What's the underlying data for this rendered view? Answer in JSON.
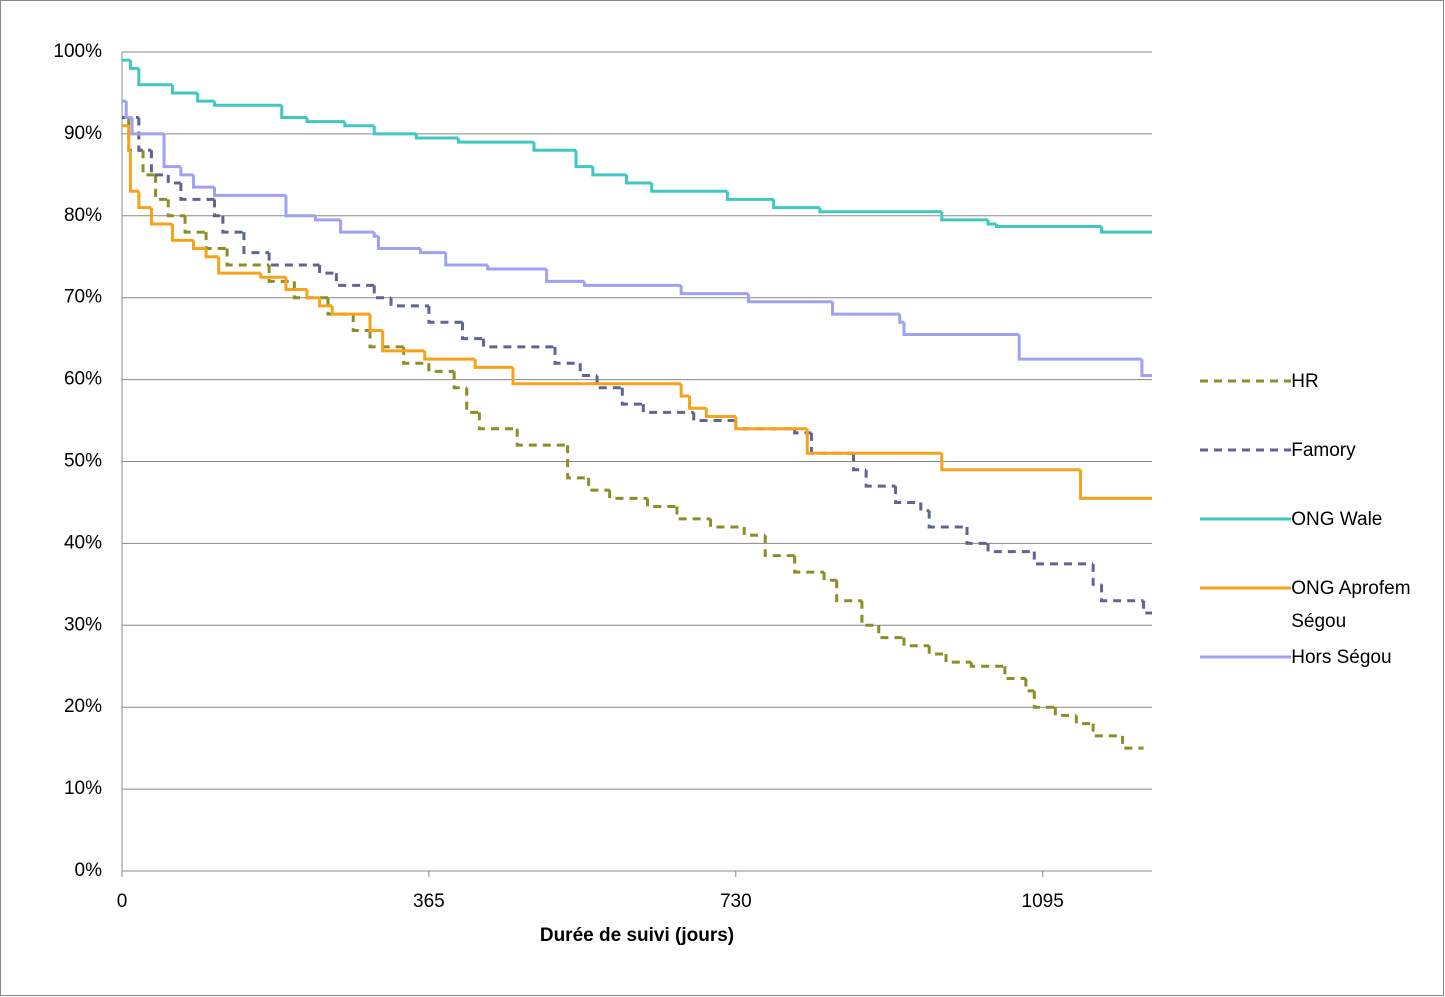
{
  "chart_data": {
    "type": "step-line",
    "xlabel": "Durée de suivi (jours)",
    "xlim": [
      0,
      1225
    ],
    "xticks": [
      0,
      365,
      730,
      1095
    ],
    "ylim": [
      0,
      100
    ],
    "yticks": [
      {
        "value": 0,
        "label": "0%"
      },
      {
        "value": 10,
        "label": "10%"
      },
      {
        "value": 20,
        "label": "20%"
      },
      {
        "value": 30,
        "label": "30%"
      },
      {
        "value": 40,
        "label": "40%"
      },
      {
        "value": 50,
        "label": "50%"
      },
      {
        "value": 60,
        "label": "60%"
      },
      {
        "value": 70,
        "label": "70%"
      },
      {
        "value": 80,
        "label": "80%"
      },
      {
        "value": 90,
        "label": "90%"
      },
      {
        "value": 100,
        "label": "100%"
      }
    ],
    "grid": true,
    "legend": "right",
    "series": [
      {
        "name": "HR",
        "color": "#8b8e25",
        "dashed": true,
        "x": [
          0,
          8,
          25,
          40,
          55,
          75,
          100,
          125,
          175,
          205,
          245,
          275,
          295,
          335,
          365,
          395,
          410,
          425,
          470,
          530,
          555,
          580,
          625,
          660,
          700,
          740,
          765,
          800,
          835,
          850,
          880,
          900,
          930,
          960,
          980,
          1010,
          1050,
          1075,
          1085,
          1110,
          1135,
          1155,
          1190,
          1215
        ],
        "values": [
          92,
          88,
          85,
          82,
          80,
          78,
          76,
          74,
          72,
          70,
          68,
          66,
          64,
          62,
          61,
          59,
          56,
          54,
          52,
          48,
          46.5,
          45.5,
          44.5,
          43,
          42,
          41,
          38.5,
          36.5,
          35.5,
          33,
          30,
          28.5,
          27.5,
          26.5,
          25.5,
          25,
          23.5,
          22,
          20,
          19,
          18,
          16.5,
          15,
          15
        ]
      },
      {
        "name": "Famory",
        "color": "#5f6590",
        "dashed": true,
        "x": [
          0,
          20,
          35,
          55,
          70,
          110,
          120,
          145,
          175,
          235,
          255,
          300,
          320,
          365,
          405,
          430,
          515,
          545,
          565,
          595,
          620,
          680,
          730,
          800,
          820,
          870,
          885,
          920,
          950,
          960,
          1005,
          1030,
          1085,
          1155,
          1165,
          1215,
          1225
        ],
        "values": [
          92,
          88,
          85,
          84,
          82,
          80,
          78,
          75.5,
          74,
          73,
          71.5,
          70,
          69,
          67,
          65,
          64,
          62,
          60.5,
          59,
          57,
          56,
          55,
          54,
          53.5,
          51,
          49,
          47,
          45,
          44,
          42,
          40,
          39,
          37.5,
          35,
          33,
          31.5,
          31.5
        ]
      },
      {
        "name": "ONG Wale",
        "color": "#40c8c0",
        "dashed": false,
        "x": [
          0,
          10,
          20,
          60,
          90,
          110,
          190,
          220,
          265,
          300,
          350,
          400,
          490,
          540,
          560,
          600,
          630,
          720,
          775,
          830,
          975,
          1030,
          1040,
          1165,
          1225
        ],
        "values": [
          99,
          98,
          96,
          95,
          94,
          93.5,
          92,
          91.5,
          91,
          90,
          89.5,
          89,
          88,
          86,
          85,
          84,
          83,
          82,
          81,
          80.5,
          79.5,
          79,
          78.7,
          78,
          78
        ]
      },
      {
        "name": "ONG Aprofem Ségou",
        "color": "#f7a21b",
        "dashed": false,
        "x": [
          0,
          8,
          10,
          20,
          35,
          60,
          85,
          100,
          115,
          165,
          195,
          220,
          235,
          250,
          295,
          310,
          360,
          420,
          465,
          665,
          675,
          695,
          730,
          815,
          975,
          1140,
          1225
        ],
        "values": [
          91,
          88,
          83,
          81,
          79,
          77,
          76,
          75,
          73,
          72.5,
          71,
          70,
          69,
          68,
          66,
          63.5,
          62.5,
          61.5,
          59.5,
          58,
          56.5,
          55.5,
          54,
          51,
          49,
          45.5,
          45.5
        ]
      },
      {
        "name": "Hors Ségou",
        "color": "#a0a0f5",
        "dashed": false,
        "x": [
          0,
          5,
          12,
          50,
          70,
          85,
          110,
          195,
          230,
          260,
          300,
          305,
          355,
          385,
          435,
          505,
          550,
          665,
          745,
          845,
          925,
          930,
          1067,
          1213,
          1225
        ],
        "values": [
          94,
          92,
          90,
          86,
          85,
          83.5,
          82.5,
          80,
          79.5,
          78,
          77.5,
          76,
          75.5,
          74,
          73.5,
          72,
          71.5,
          70.5,
          69.5,
          68,
          67,
          65.5,
          62.5,
          60.5,
          60.5
        ]
      }
    ]
  }
}
